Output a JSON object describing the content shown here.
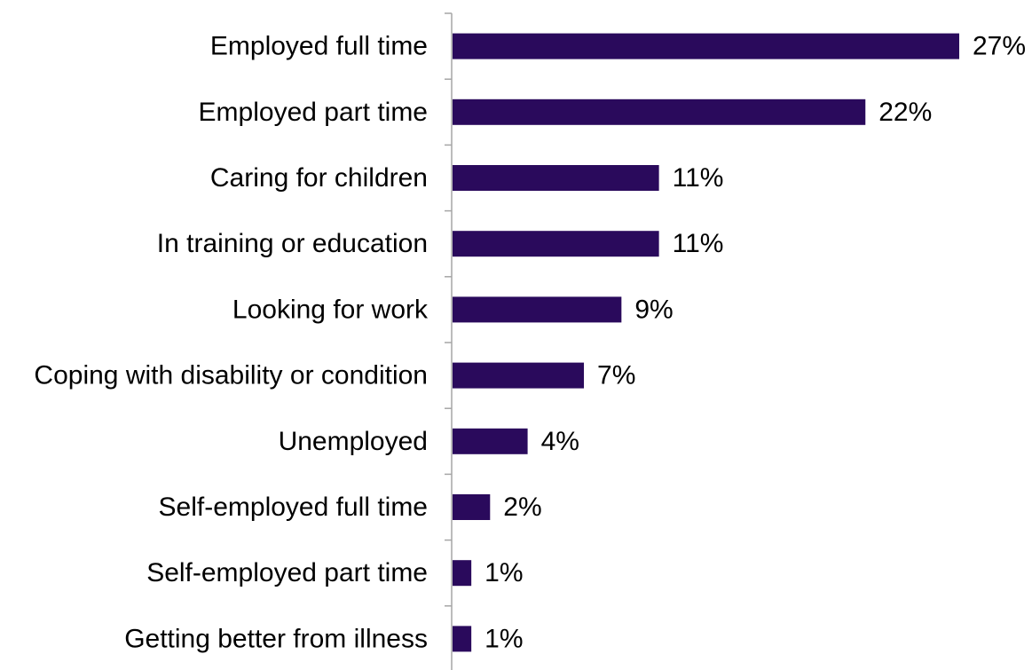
{
  "chart_data": {
    "type": "bar",
    "orientation": "horizontal",
    "categories": [
      "Employed full time",
      "Employed part time",
      "Caring for children",
      "In training or education",
      "Looking for work",
      "Coping with disability or condition",
      "Unemployed",
      "Self-employed full time",
      "Self-employed part time",
      "Getting better from illness"
    ],
    "values": [
      27,
      22,
      11,
      11,
      9,
      7,
      4,
      2,
      1,
      1
    ],
    "value_labels": [
      "27%",
      "22%",
      "11%",
      "11%",
      "9%",
      "7%",
      "4%",
      "2%",
      "1%",
      "1%"
    ],
    "unit": "%",
    "title": "",
    "xlabel": "",
    "ylabel": "",
    "bar_color": "#2a0a5c",
    "grid": false,
    "legend": "none"
  }
}
